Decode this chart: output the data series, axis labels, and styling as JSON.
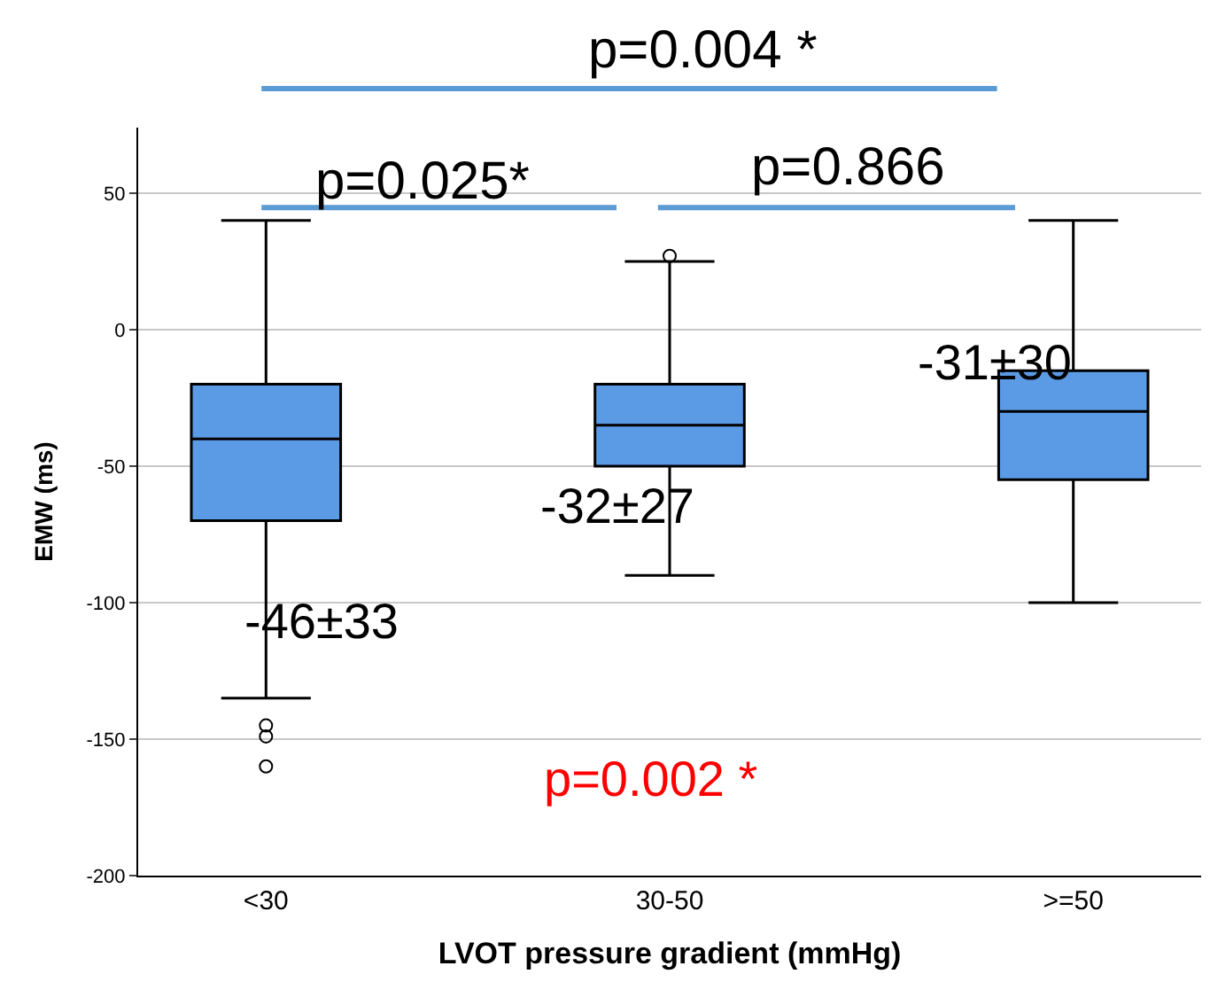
{
  "chart_data": {
    "type": "box",
    "xlabel": "LVOT pressure gradient (mmHg)",
    "ylabel": "EMW (ms)",
    "categories": [
      "<30",
      "30-50",
      ">=50"
    ],
    "boxes": [
      {
        "low": -135,
        "q1": -70,
        "median": -40,
        "q3": -20,
        "high": 40,
        "outliers": [
          -145,
          -149,
          -160
        ]
      },
      {
        "low": -90,
        "q1": -50,
        "median": -35,
        "q3": -20,
        "high": 25,
        "outliers": [
          27
        ]
      },
      {
        "low": -100,
        "q1": -55,
        "median": -30,
        "q3": -15,
        "high": 40
      }
    ],
    "color": "#5b9be6",
    "ylim": [
      -200,
      74
    ],
    "yticks": [
      -200,
      -150,
      -100,
      -50,
      0,
      50
    ],
    "grid": "y",
    "annotations": [
      "p=0.004 *",
      "p=0.025*",
      "p=0.866",
      "-46±33",
      "-32±27",
      "-31±30",
      "p=0.002 *"
    ]
  }
}
